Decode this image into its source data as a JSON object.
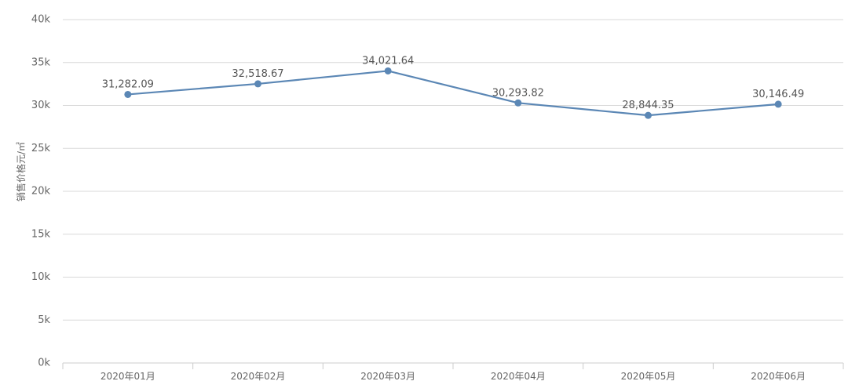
{
  "chart_data": {
    "type": "line",
    "categories": [
      "2020年01月",
      "2020年02月",
      "2020年03月",
      "2020年04月",
      "2020年05月",
      "2020年06月"
    ],
    "series": [
      {
        "values": [
          31282.09,
          32518.67,
          34021.64,
          30293.82,
          28844.35,
          30146.49
        ],
        "labels": [
          "31,282.09",
          "32,518.67",
          "34,021.64",
          "30,293.82",
          "28,844.35",
          "30,146.49"
        ],
        "color": "#5b87b5"
      }
    ],
    "ylabel": "销售价格元/㎡",
    "xlabel": "",
    "ylim": [
      0,
      40000
    ],
    "yticks": [
      0,
      5000,
      10000,
      15000,
      20000,
      25000,
      30000,
      35000,
      40000
    ],
    "ytick_labels": [
      "0k",
      "5k",
      "10k",
      "15k",
      "20k",
      "25k",
      "30k",
      "35k",
      "40k"
    ],
    "grid": true,
    "legend": "none"
  }
}
